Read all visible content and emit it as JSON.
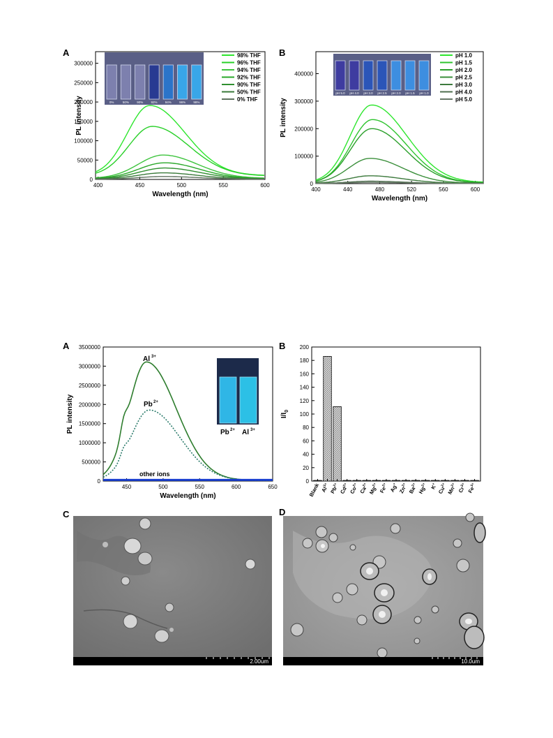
{
  "chart_data": [
    {
      "panel": "A",
      "type": "line",
      "xlabel": "Wavelength (nm)",
      "ylabel": "PL intensity",
      "xlim": [
        397,
        600
      ],
      "ylim": [
        0,
        330000
      ],
      "xticks": [
        400,
        450,
        500,
        550,
        600
      ],
      "yticks": [
        0,
        50000,
        100000,
        150000,
        200000,
        250000,
        300000
      ],
      "legend_position": "top-right",
      "inset": {
        "alt": "photo of vials",
        "labels": [
          "0%",
          "50%",
          "90%",
          "92%",
          "94%",
          "96%",
          "98%"
        ]
      },
      "series": [
        {
          "name": "98% THF",
          "color": "#2ee62e",
          "peak": 181000,
          "center": 462,
          "w1": 38,
          "w2": 60,
          "base": 10000
        },
        {
          "name": "96% THF",
          "color": "#28d028",
          "peak": 128000,
          "center": 465,
          "w1": 40,
          "w2": 62,
          "base": 9000
        },
        {
          "name": "94% THF",
          "color": "#3ec43e",
          "peak": 60000,
          "center": 478,
          "w1": 42,
          "w2": 58,
          "base": 3000
        },
        {
          "name": "92% THF",
          "color": "#2aa82a",
          "peak": 41000,
          "center": 480,
          "w1": 44,
          "w2": 58,
          "base": 2000
        },
        {
          "name": "90% THF",
          "color": "#2f8f2f",
          "peak": 28000,
          "center": 480,
          "w1": 44,
          "w2": 58,
          "base": 1500
        },
        {
          "name": "50% THF",
          "color": "#3a7a3a",
          "peak": 16000,
          "center": 478,
          "w1": 42,
          "w2": 58,
          "base": 1000
        },
        {
          "name": "0%  THF",
          "color": "#5f725f",
          "peak": 7000,
          "center": 478,
          "w1": 40,
          "w2": 58,
          "base": 600
        }
      ]
    },
    {
      "panel": "B",
      "type": "line",
      "xlabel": "Wavelength (nm)",
      "ylabel": "PL intensity",
      "xlim": [
        400,
        610
      ],
      "ylim": [
        0,
        480000
      ],
      "xticks": [
        400,
        440,
        480,
        520,
        560,
        600
      ],
      "yticks": [
        0,
        100000,
        200000,
        300000,
        400000
      ],
      "legend_position": "top-right",
      "inset": {
        "alt": "photo of vials",
        "labels": [
          "pH 5.0",
          "pH 4.0",
          "pH 3.0",
          "pH 2.5",
          "pH 2.0",
          "pH 1.5",
          "pH 1.0"
        ]
      },
      "series": [
        {
          "name": "pH 1.0",
          "color": "#2ee62e",
          "peak": 282000,
          "center": 470,
          "w1": 38,
          "w2": 62,
          "base": 4000
        },
        {
          "name": "pH 1.5",
          "color": "#2fc42f",
          "peak": 230000,
          "center": 471,
          "w1": 38,
          "w2": 60,
          "base": 3000
        },
        {
          "name": "pH 2.0",
          "color": "#2a9f2a",
          "peak": 197000,
          "center": 470,
          "w1": 38,
          "w2": 60,
          "base": 3000
        },
        {
          "name": "pH 2.5",
          "color": "#3b8f3b",
          "peak": 90000,
          "center": 468,
          "w1": 38,
          "w2": 58,
          "base": 2000
        },
        {
          "name": "pH 3.0",
          "color": "#3d7a3d",
          "peak": 27000,
          "center": 468,
          "w1": 38,
          "w2": 58,
          "base": 1500
        },
        {
          "name": "pH 4.0",
          "color": "#4f6f4f",
          "peak": 8000,
          "center": 468,
          "w1": 38,
          "w2": 58,
          "base": 800
        },
        {
          "name": "pH 5.0",
          "color": "#667766",
          "peak": 4000,
          "center": 468,
          "w1": 38,
          "w2": 58,
          "base": 500
        }
      ]
    },
    {
      "panel": "A",
      "type": "line",
      "xlabel": "Wavelength (nm)",
      "ylabel": "PL intensity",
      "xlim": [
        418,
        650
      ],
      "ylim": [
        0,
        3500000
      ],
      "xticks": [
        450,
        500,
        550,
        600,
        650
      ],
      "yticks": [
        0,
        500000,
        1000000,
        1500000,
        2000000,
        2500000,
        3000000,
        3500000
      ],
      "annotations": [
        "Al",
        "3+",
        "Pb",
        "2+",
        "other ions"
      ],
      "inset": {
        "alt": "photo of vials",
        "labels": [
          "Pb",
          "2+",
          "Al",
          "3+"
        ]
      },
      "series": [
        {
          "name": "Al3+",
          "color": "#2e7d2e",
          "style": "solid",
          "peak": 3090000,
          "center": 477,
          "w1": 34,
          "w2": 58,
          "base": 20000,
          "shoulder": 1780000
        },
        {
          "name": "Pb2+",
          "color": "#2a7a6a",
          "style": "dotted",
          "peak": 1840000,
          "center": 481,
          "w1": 36,
          "w2": 60,
          "base": 15000,
          "shoulder": 880000
        },
        {
          "name": "other ions",
          "color": "#1a3fd0",
          "style": "solid",
          "values_flat": 30000
        }
      ]
    },
    {
      "panel": "B",
      "type": "bar",
      "ylabel": "I/I",
      "ylabel_sub": "0",
      "ylim": [
        0,
        200
      ],
      "yticks": [
        0,
        20,
        40,
        60,
        80,
        100,
        120,
        140,
        160,
        180,
        200
      ],
      "categories": [
        {
          "base": "Blank",
          "sup": ""
        },
        {
          "base": "Al",
          "sup": "3+"
        },
        {
          "base": "Pb",
          "sup": "2+"
        },
        {
          "base": "Cd",
          "sup": "2+"
        },
        {
          "base": "Co",
          "sup": "2+"
        },
        {
          "base": "Ca",
          "sup": "2+"
        },
        {
          "base": "Mg",
          "sup": "2+"
        },
        {
          "base": "Fe",
          "sup": "2+"
        },
        {
          "base": "Ag",
          "sup": "+"
        },
        {
          "base": "Zn",
          "sup": "2+"
        },
        {
          "base": "Ba",
          "sup": "2+"
        },
        {
          "base": "Hg",
          "sup": "2+"
        },
        {
          "base": "K",
          "sup": "+"
        },
        {
          "base": "Cu",
          "sup": "2+"
        },
        {
          "base": "Mn",
          "sup": "2+"
        },
        {
          "base": "Cr",
          "sup": "3+"
        },
        {
          "base": "Fe",
          "sup": "3+"
        }
      ],
      "values": [
        1,
        186,
        111,
        1,
        1,
        1,
        1,
        1,
        1,
        1,
        1,
        1,
        1,
        1,
        1,
        1,
        1
      ]
    }
  ],
  "panels": {
    "top_a": "A",
    "top_b": "B",
    "bot_a": "A",
    "bot_b": "B",
    "c": "C",
    "d": "D"
  },
  "sem": {
    "c_scale": "2.00um",
    "d_scale": "10.0um"
  }
}
